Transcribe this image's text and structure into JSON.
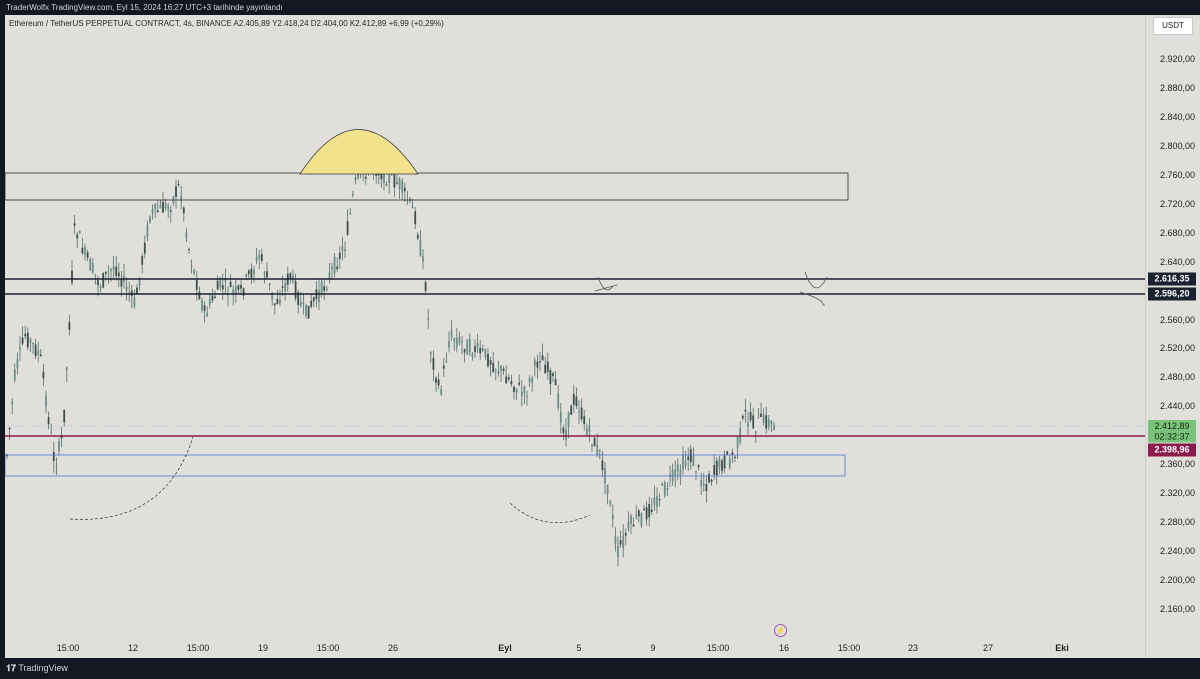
{
  "header": {
    "publish_line": "TraderWolfx TradingView.com, Eyl 15, 2024 16:27 UTC+3 tarihinde yayınlandı"
  },
  "symbol": {
    "info": "Ethereum / TetherUS PERPETUAL CONTRACT, 4s, BINANCE  A2.405,89  Y2.418,24  D2.404,00  K2.412,89  +6,99 (+0,29%)"
  },
  "price_axis": {
    "currency": "USDT",
    "ticks": [
      {
        "label": "2.920,00",
        "value": 2920
      },
      {
        "label": "2.880,00",
        "value": 2880
      },
      {
        "label": "2.840,00",
        "value": 2840
      },
      {
        "label": "2.800,00",
        "value": 2800
      },
      {
        "label": "2.760,00",
        "value": 2760
      },
      {
        "label": "2.720,00",
        "value": 2720
      },
      {
        "label": "2.680,00",
        "value": 2680
      },
      {
        "label": "2.640,00",
        "value": 2640
      },
      {
        "label": "2.560,00",
        "value": 2560
      },
      {
        "label": "2.520,00",
        "value": 2520
      },
      {
        "label": "2.480,00",
        "value": 2480
      },
      {
        "label": "2.440,00",
        "value": 2440
      },
      {
        "label": "2.360,00",
        "value": 2360
      },
      {
        "label": "2.320,00",
        "value": 2320
      },
      {
        "label": "2.280,00",
        "value": 2280
      },
      {
        "label": "2.240,00",
        "value": 2240
      },
      {
        "label": "2.200,00",
        "value": 2200
      },
      {
        "label": "2.160,00",
        "value": 2160
      }
    ],
    "badges": {
      "level_upper": "2.616,35",
      "level_lower": "2.596,20",
      "last_price": "2.412,89",
      "countdown": "02:32:37",
      "red_level": "2.398,96"
    }
  },
  "time_axis": {
    "labels": [
      {
        "label": "15:00",
        "bold": false
      },
      {
        "label": "12",
        "bold": false
      },
      {
        "label": "15:00",
        "bold": false
      },
      {
        "label": "19",
        "bold": false
      },
      {
        "label": "15:00",
        "bold": false
      },
      {
        "label": "26",
        "bold": false
      },
      {
        "label": "Eyl",
        "bold": true
      },
      {
        "label": "5",
        "bold": false
      },
      {
        "label": "9",
        "bold": false
      },
      {
        "label": "15:00",
        "bold": false
      },
      {
        "label": "16",
        "bold": false
      },
      {
        "label": "15:00",
        "bold": false
      },
      {
        "label": "23",
        "bold": false
      },
      {
        "label": "27",
        "bold": false
      },
      {
        "label": "Eki",
        "bold": true
      }
    ]
  },
  "footer": {
    "brand": "TradingView"
  },
  "icons": {
    "bolt": "lightning-icon",
    "logo": "tradingview-logo-icon"
  },
  "colors": {
    "chart_bg": "#e1dfdb",
    "candles": "#55706a",
    "level_line": "#1c2130",
    "red_line": "#8b1a4b",
    "zone_blue": "#4f72d8",
    "arc_fill": "#f1e28b"
  }
}
